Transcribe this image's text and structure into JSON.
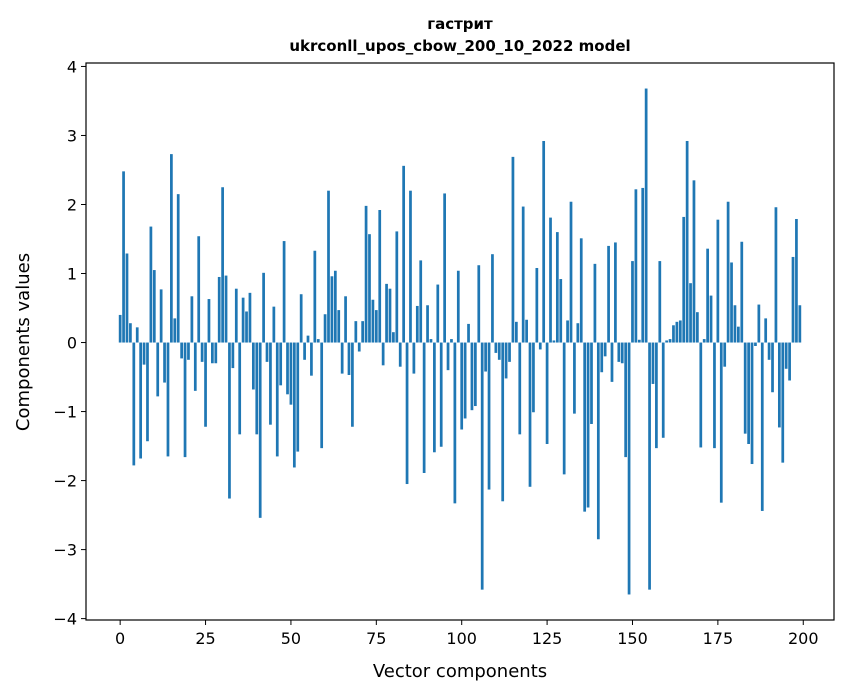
{
  "chart_data": {
    "type": "bar",
    "title": "гастрит",
    "subtitle": "ukrconll_upos_cbow_200_10_2022 model",
    "xlabel": "Vector components",
    "ylabel": "Components values",
    "xlim": [
      -10,
      209
    ],
    "ylim": [
      -4.02,
      4.05
    ],
    "xticks": [
      0,
      25,
      50,
      75,
      100,
      125,
      150,
      175,
      200
    ],
    "xtick_labels": [
      "0",
      "25",
      "50",
      "75",
      "100",
      "125",
      "150",
      "175",
      "200"
    ],
    "yticks": [
      -4,
      -3,
      -2,
      -1,
      0,
      1,
      2,
      3,
      4
    ],
    "ytick_labels": [
      "−4",
      "−3",
      "−2",
      "−1",
      "0",
      "1",
      "2",
      "3",
      "4"
    ],
    "grid": false,
    "bar_color": "#1f77b4",
    "values": [
      0.4,
      2.48,
      1.29,
      0.28,
      -1.78,
      0.22,
      -1.68,
      -0.32,
      -1.43,
      1.68,
      1.05,
      -0.78,
      0.77,
      -0.58,
      -1.65,
      2.73,
      0.35,
      2.15,
      -0.23,
      -1.66,
      -0.25,
      0.67,
      -0.7,
      1.54,
      -0.28,
      -1.22,
      0.63,
      -0.3,
      -0.3,
      0.95,
      2.25,
      0.97,
      -2.26,
      -0.37,
      0.78,
      -1.33,
      0.65,
      0.45,
      0.72,
      -0.68,
      -1.33,
      -2.54,
      1.01,
      -0.28,
      -1.19,
      0.52,
      -1.65,
      -0.62,
      1.47,
      -0.75,
      -0.9,
      -1.81,
      -1.58,
      0.7,
      -0.25,
      0.1,
      -0.48,
      1.33,
      0.05,
      -1.53,
      0.41,
      2.2,
      0.96,
      1.04,
      0.47,
      -0.45,
      0.67,
      -0.47,
      -1.22,
      0.31,
      -0.13,
      0.31,
      1.98,
      1.57,
      0.62,
      0.47,
      1.92,
      -0.33,
      0.85,
      0.78,
      0.15,
      1.61,
      -0.35,
      2.56,
      -2.05,
      2.2,
      -0.45,
      0.53,
      1.19,
      -1.89,
      0.54,
      0.05,
      -1.59,
      0.84,
      -1.51,
      2.16,
      -0.4,
      0.05,
      -2.33,
      1.04,
      -1.26,
      -1.1,
      0.27,
      -0.98,
      -0.92,
      1.12,
      -3.58,
      -0.42,
      -2.13,
      1.28,
      -0.15,
      -0.25,
      -2.3,
      -0.52,
      -0.28,
      2.69,
      0.3,
      -1.33,
      1.97,
      0.33,
      -2.09,
      -1.01,
      1.08,
      -0.1,
      2.92,
      -1.47,
      1.81,
      0.03,
      1.6,
      0.92,
      -1.91,
      0.32,
      2.04,
      -1.03,
      0.28,
      1.51,
      -2.45,
      -2.39,
      -1.18,
      1.14,
      -2.85,
      -0.43,
      -0.2,
      1.4,
      -0.57,
      1.45,
      -0.28,
      -0.3,
      -1.66,
      -3.65,
      1.18,
      2.22,
      0.04,
      2.24,
      3.68,
      -3.58,
      -0.6,
      -1.53,
      1.18,
      -1.38,
      0.03,
      0.05,
      0.25,
      0.3,
      0.32,
      1.82,
      2.92,
      0.86,
      2.35,
      0.44,
      -1.52,
      0.05,
      1.36,
      0.68,
      -1.53,
      1.78,
      -2.32,
      -0.35,
      2.04,
      1.16,
      0.54,
      0.23,
      1.46,
      -1.32,
      -1.47,
      -1.76,
      -0.05,
      0.55,
      -2.44,
      0.35,
      -0.25,
      -0.72,
      1.96,
      -1.23,
      -1.74,
      -0.38,
      -0.55,
      1.24,
      1.79,
      0.54
    ]
  }
}
